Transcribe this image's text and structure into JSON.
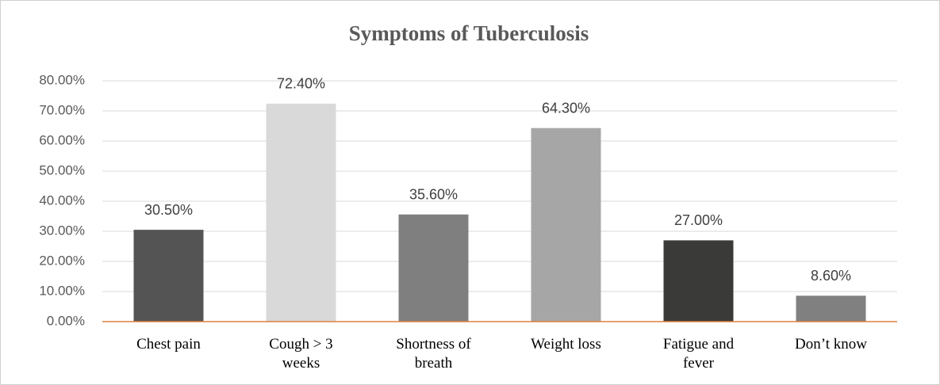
{
  "chart_data": {
    "type": "bar",
    "title": "Symptoms of Tuberculosis",
    "categories": [
      "Chest pain",
      "Cough > 3 weeks",
      "Shortness of breath",
      "Weight loss",
      "Fatigue and fever",
      "Don’t know"
    ],
    "values": [
      30.5,
      72.4,
      35.6,
      64.3,
      27.0,
      8.6
    ],
    "value_labels": [
      "30.50%",
      "72.40%",
      "35.60%",
      "64.30%",
      "27.00%",
      "8.60%"
    ],
    "colors": [
      "#545454",
      "#d9d9d9",
      "#7f7f7f",
      "#a6a6a6",
      "#3a3a38",
      "#808080"
    ],
    "ylim": [
      0,
      80
    ],
    "yticks": [
      {
        "value": 0,
        "label": "0.00%"
      },
      {
        "value": 10,
        "label": "10.00%"
      },
      {
        "value": 20,
        "label": "20.00%"
      },
      {
        "value": 30,
        "label": "30.00%"
      },
      {
        "value": 40,
        "label": "40.00%"
      },
      {
        "value": 50,
        "label": "50.00%"
      },
      {
        "value": 60,
        "label": "60.00%"
      },
      {
        "value": 70,
        "label": "70.00%"
      },
      {
        "value": 80,
        "label": "80.00%"
      }
    ],
    "grid": true
  }
}
